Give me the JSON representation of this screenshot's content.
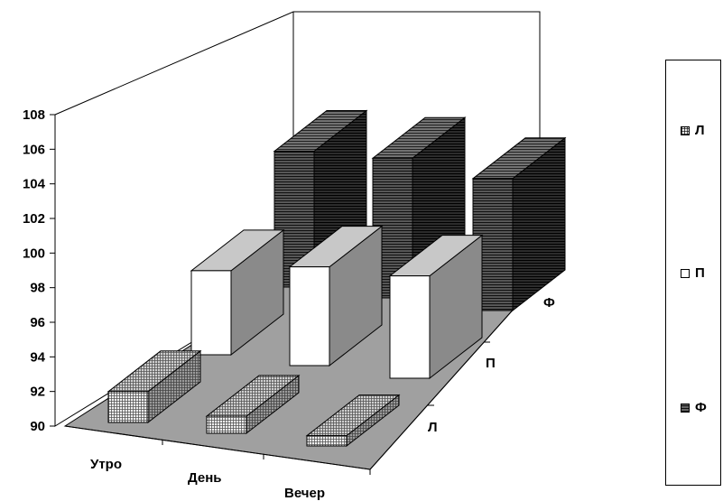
{
  "chart_data": {
    "type": "bar",
    "subtype": "3d-clustered-depth",
    "categories": [
      "Утро",
      "День",
      "Вечер"
    ],
    "series": [
      {
        "name": "Л",
        "values": [
          94.5,
          92.5,
          91.5
        ],
        "pattern": "grid",
        "color": "#d8d8d8"
      },
      {
        "name": "П",
        "values": [
          101.5,
          103.5,
          104
        ],
        "pattern": "solid",
        "color": "#ffffff"
      },
      {
        "name": "Ф",
        "values": [
          107.5,
          108,
          107
        ],
        "pattern": "hlines",
        "color": "#2a2a2a"
      }
    ],
    "y_ticks": [
      "90",
      "92",
      "94",
      "96",
      "98",
      "100",
      "102",
      "104",
      "106",
      "108"
    ],
    "ylim": [
      90,
      108
    ],
    "grid": false,
    "legend_placement": "right"
  }
}
